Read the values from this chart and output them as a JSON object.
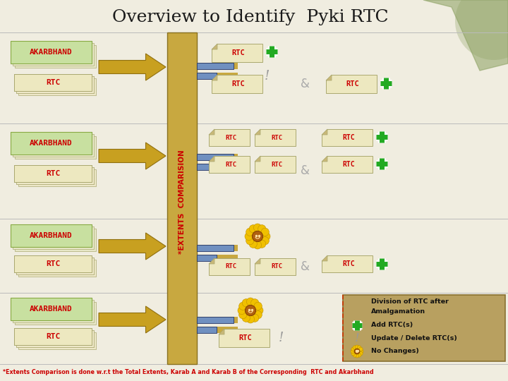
{
  "title": "Overview to Identify  Pyki RTC",
  "title_fontsize": 18,
  "title_color": "#1a1a1a",
  "bg_color": "#f0ede0",
  "beige_page": "#e8e0a8",
  "green_box_fc": "#c8e0a0",
  "green_box_ec": "#88aa44",
  "arrow_color": "#c8a020",
  "col_color": "#c8a840",
  "col_ec": "#887020",
  "blue_bar_fc": "#7090c0",
  "blue_bar_ec": "#223366",
  "rtc_box_fc": "#ede8c0",
  "rtc_box_ec": "#aaa870",
  "rtc_fold_fc": "#c8b878",
  "red_text": "#cc0000",
  "amp_color": "#aaaaaa",
  "exclaim_color": "#999999",
  "sep_color": "#bbbbbb",
  "legend_bg": "#b8a060",
  "legend_ec": "#887030",
  "legend_dash": "#cc3300",
  "green_plus": "#22aa22",
  "footnote_color": "#cc0000",
  "topright_green": "#8aa060",
  "footnote": "*Extents Comparison is done w.r.t the Total Extents, Karab A and Karab B of the Corresponding  RTC and Akarbhand",
  "legend_title1": "Division of RTC after",
  "legend_title2": "Amalgamation",
  "legend_add": "Add RTC(s)",
  "legend_update": "Update / Delete RTC(s)",
  "legend_nochange": "No Changes)"
}
